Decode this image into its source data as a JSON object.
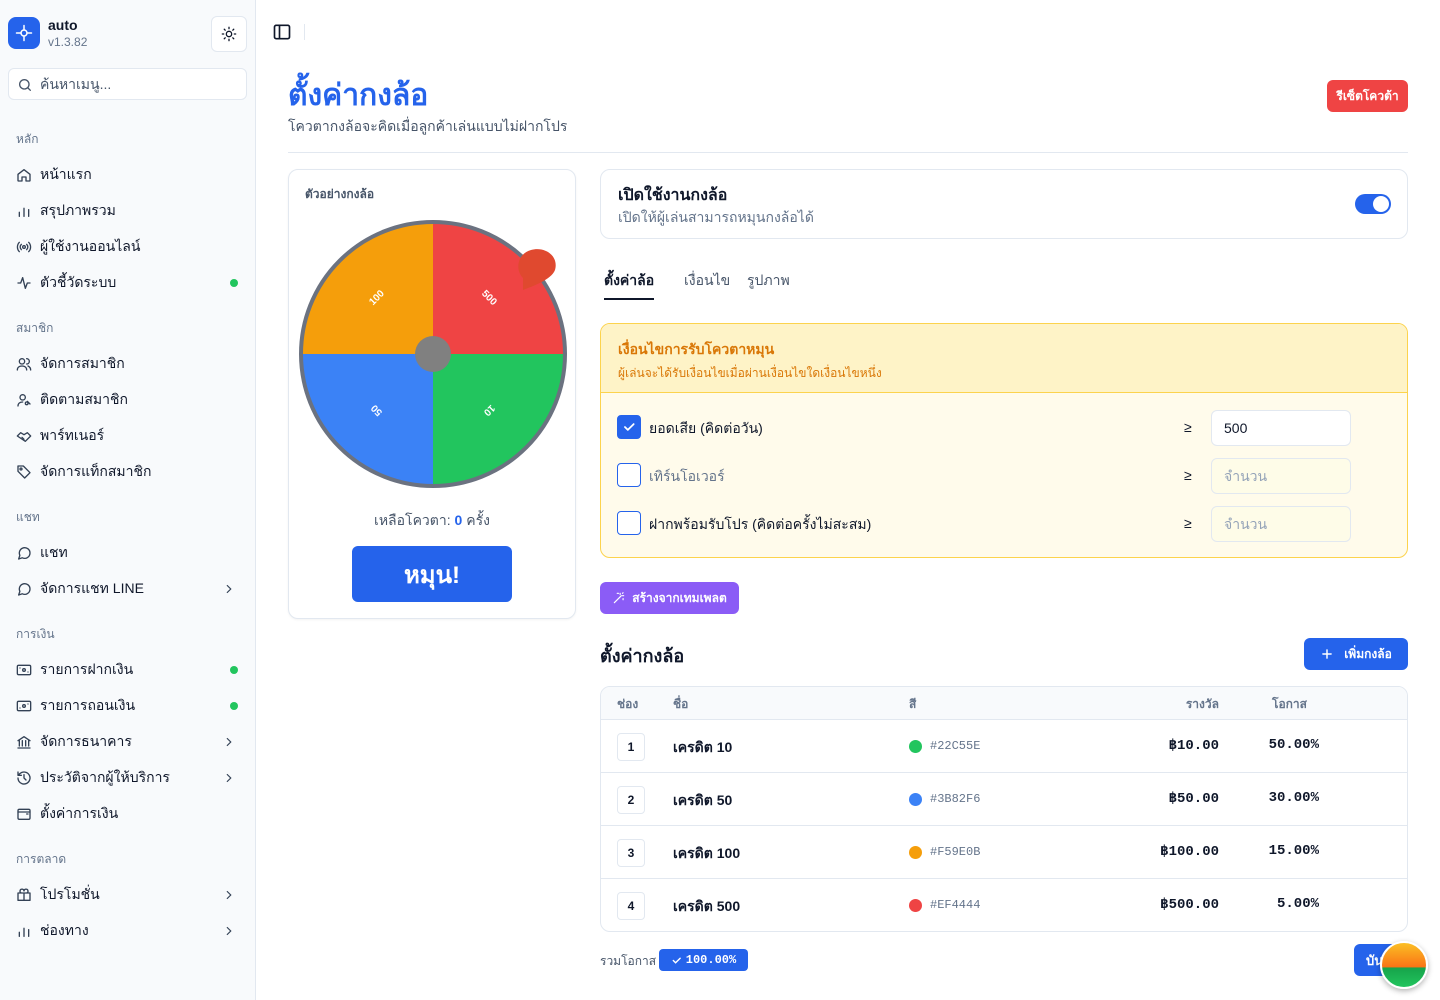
{
  "app": {
    "name": "auto",
    "version": "v1.3.82"
  },
  "search": {
    "placeholder": "ค้นหาเมนู..."
  },
  "sidebar": {
    "sections": [
      {
        "title": "หลัก",
        "items": [
          {
            "label": "หน้าแรก",
            "icon": "home-icon"
          },
          {
            "label": "สรุปภาพรวม",
            "icon": "bar-chart-icon"
          },
          {
            "label": "ผู้ใช้งานออนไลน์",
            "icon": "broadcast-icon"
          },
          {
            "label": "ตัวชี้วัดระบบ",
            "icon": "activity-icon",
            "dot": true
          }
        ]
      },
      {
        "title": "สมาชิก",
        "items": [
          {
            "label": "จัดการสมาชิก",
            "icon": "users-icon"
          },
          {
            "label": "ติดตามสมาชิก",
            "icon": "user-search-icon"
          },
          {
            "label": "พาร์ทเนอร์",
            "icon": "handshake-icon"
          },
          {
            "label": "จัดการแท็กสมาชิก",
            "icon": "tag-icon"
          }
        ]
      },
      {
        "title": "แชท",
        "items": [
          {
            "label": "แชท",
            "icon": "chat-icon"
          },
          {
            "label": "จัดการแชท LINE",
            "icon": "chat-icon",
            "chevron": true
          }
        ]
      },
      {
        "title": "การเงิน",
        "items": [
          {
            "label": "รายการฝากเงิน",
            "icon": "deposit-icon",
            "dot": true
          },
          {
            "label": "รายการถอนเงิน",
            "icon": "withdraw-icon",
            "dot": true
          },
          {
            "label": "จัดการธนาคาร",
            "icon": "bank-icon",
            "chevron": true
          },
          {
            "label": "ประวัติจากผู้ให้บริการ",
            "icon": "history-icon",
            "chevron": true
          },
          {
            "label": "ตั้งค่าการเงิน",
            "icon": "wallet-icon"
          }
        ]
      },
      {
        "title": "การตลาด",
        "items": [
          {
            "label": "โปรโมชั่น",
            "icon": "promo-icon",
            "chevron": true
          },
          {
            "label": "ช่องทาง",
            "icon": "bar-chart-icon",
            "chevron": true
          }
        ]
      }
    ]
  },
  "header": {
    "title": "ตั้งค่ากงล้อ",
    "subtitle": "โควตากงล้อจะคิดเมื่อลูกค้าเล่นแบบไม่ฝากโปร",
    "reset_label": "รีเซ็ตโควต้า"
  },
  "preview": {
    "label": "ตัวอย่างกงล้อ",
    "remaining_prefix": "เหลือโควตา:",
    "remaining_count": "0",
    "remaining_suffix": "ครั้ง",
    "spin_label": "หมุน!"
  },
  "enable": {
    "title": "เปิดใช้งานกงล้อ",
    "subtitle": "เปิดให้ผู้เล่นสามารถหมุนกงล้อได้",
    "enabled": true
  },
  "tabs": [
    {
      "label": "ตั้งค่าล้อ",
      "active": true
    },
    {
      "label": "เงื่อนไข",
      "active": false
    },
    {
      "label": "รูปภาพ",
      "active": false
    }
  ],
  "conditions": {
    "title": "เงื่อนไขการรับโควตาหมุน",
    "subtitle": "ผู้เล่นจะได้รับเงื่อนไขเมื่อผ่านเงื่อนไขใดเงื่อนไขหนึ่ง",
    "operator": "≥",
    "rows": [
      {
        "label": "ยอดเสีย (คิดต่อวัน)",
        "checked": true,
        "value": "500",
        "placeholder": "จำนวน"
      },
      {
        "label": "เทิร์นโอเวอร์",
        "checked": false,
        "value": "",
        "placeholder": "จำนวน"
      },
      {
        "label": "ฝากพร้อมรับโปร (คิดต่อครั้งไม่สะสม)",
        "checked": false,
        "value": "",
        "placeholder": "จำนวน"
      }
    ]
  },
  "template_label": "สร้างจากเทมเพลต",
  "wheel_settings": {
    "title": "ตั้งค่ากงล้อ",
    "add_label": "เพิ่มกงล้อ",
    "columns": {
      "slot": "ช่อง",
      "name": "ชื่อ",
      "color": "สี",
      "prize": "รางวัล",
      "chance": "โอกาส"
    },
    "rows": [
      {
        "slot": "1",
        "name": "เครดิต 10",
        "color": "#22C55E",
        "prize": "฿10.00",
        "chance": "50.00%",
        "wheel_label": "10"
      },
      {
        "slot": "2",
        "name": "เครดิต 50",
        "color": "#3B82F6",
        "prize": "฿50.00",
        "chance": "30.00%",
        "wheel_label": "50"
      },
      {
        "slot": "3",
        "name": "เครดิต 100",
        "color": "#F59E0B",
        "prize": "฿100.00",
        "chance": "15.00%",
        "wheel_label": "100"
      },
      {
        "slot": "4",
        "name": "เครดิต 500",
        "color": "#EF4444",
        "prize": "฿500.00",
        "chance": "5.00%",
        "wheel_label": "500"
      }
    ]
  },
  "total": {
    "label": "รวมโอกาส",
    "value": "100.00%"
  },
  "save_label": "บันทึก"
}
